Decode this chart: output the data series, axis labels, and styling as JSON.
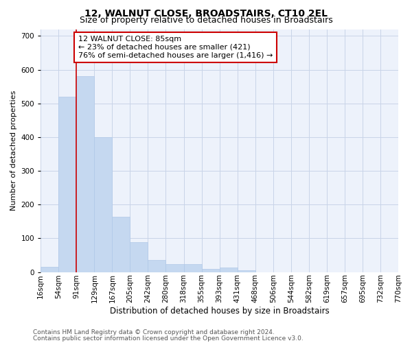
{
  "title": "12, WALNUT CLOSE, BROADSTAIRS, CT10 2EL",
  "subtitle": "Size of property relative to detached houses in Broadstairs",
  "xlabel": "Distribution of detached houses by size in Broadstairs",
  "ylabel": "Number of detached properties",
  "bar_values": [
    15,
    520,
    580,
    400,
    163,
    88,
    35,
    23,
    23,
    10,
    13,
    5,
    0,
    0,
    0,
    0,
    0,
    0,
    0,
    0
  ],
  "bar_labels": [
    "16sqm",
    "54sqm",
    "91sqm",
    "129sqm",
    "167sqm",
    "205sqm",
    "242sqm",
    "280sqm",
    "318sqm",
    "355sqm",
    "393sqm",
    "431sqm",
    "468sqm",
    "506sqm",
    "544sqm",
    "582sqm",
    "619sqm",
    "657sqm",
    "695sqm",
    "732sqm",
    "770sqm"
  ],
  "bar_color": "#c5d8f0",
  "bar_edge_color": "#b0c8e8",
  "grid_color": "#c8d4e8",
  "bg_color": "#edf2fb",
  "vline_x": 2.0,
  "vline_color": "#cc0000",
  "annotation_text": "12 WALNUT CLOSE: 85sqm\n← 23% of detached houses are smaller (421)\n76% of semi-detached houses are larger (1,416) →",
  "annotation_box_color": "#ffffff",
  "annotation_box_edge": "#cc0000",
  "ylim": [
    0,
    720
  ],
  "yticks": [
    0,
    100,
    200,
    300,
    400,
    500,
    600,
    700
  ],
  "footer1": "Contains HM Land Registry data © Crown copyright and database right 2024.",
  "footer2": "Contains public sector information licensed under the Open Government Licence v3.0.",
  "title_fontsize": 10,
  "subtitle_fontsize": 9,
  "xlabel_fontsize": 8.5,
  "ylabel_fontsize": 8,
  "tick_fontsize": 7.5,
  "annot_fontsize": 8,
  "footer_fontsize": 6.5
}
